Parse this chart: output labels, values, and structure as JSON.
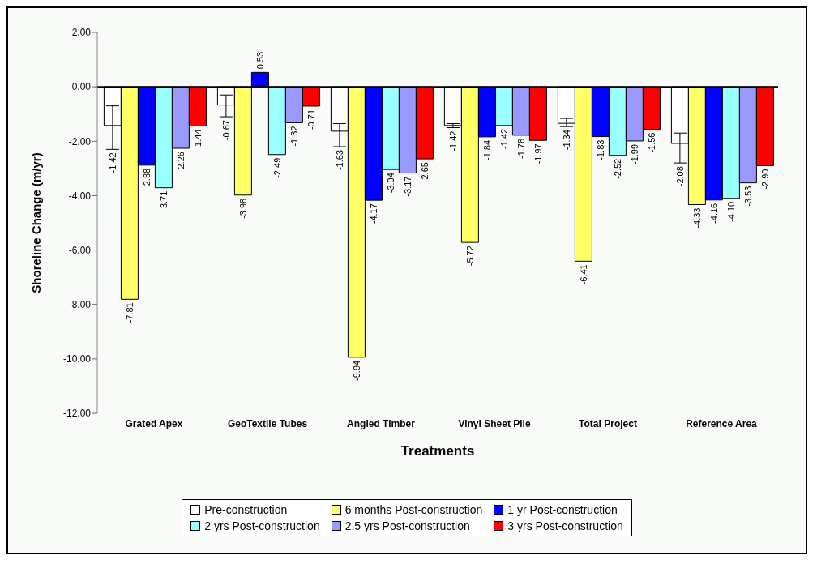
{
  "chart_data": {
    "type": "bar",
    "xlabel": "Treatments",
    "ylabel": "Shoreline Change (m/yr)",
    "categories": [
      "Grated Apex",
      "GeoTextile Tubes",
      "Angled Timber",
      "Vinyl Sheet Pile",
      "Total Project",
      "Reference Area"
    ],
    "series": [
      {
        "name": "Pre-construction",
        "color": "#ffffff",
        "values": [
          -1.42,
          -0.67,
          -1.63,
          -1.42,
          -1.34,
          -2.08
        ],
        "value_labels": [
          "-1.42",
          "-0.67",
          "-1.63",
          "-1.42",
          "-1.34",
          "-2.08"
        ],
        "errors": [
          [
            -2.3,
            -0.7
          ],
          [
            -1.1,
            -0.3
          ],
          [
            -2.2,
            -1.35
          ],
          [
            -1.5,
            -1.35
          ],
          [
            -1.46,
            -1.16
          ],
          [
            -2.8,
            -1.7
          ]
        ]
      },
      {
        "name": "6 months Post-construction",
        "color": "#ffff66",
        "values": [
          -7.81,
          -3.98,
          -9.94,
          -5.72,
          -6.41,
          -4.33
        ],
        "value_labels": [
          "-7.81",
          "-3.98",
          "-9.94",
          "-5.72",
          "-6.41",
          "-4.33"
        ]
      },
      {
        "name": "1 yr Post-construction",
        "color": "#0000ff",
        "values": [
          -2.88,
          0.53,
          -4.17,
          -1.84,
          -1.83,
          -4.16
        ],
        "value_labels": [
          "-2.88",
          "0.53",
          "-4.17",
          "-1.84",
          "-1.83",
          "-4.16"
        ]
      },
      {
        "name": "2 yrs Post-construction",
        "color": "#99ffff",
        "values": [
          -3.71,
          -2.49,
          -3.04,
          -1.42,
          -2.52,
          -4.1
        ],
        "value_labels": [
          "-3.71",
          "-2.49",
          "-3.04",
          "-1.42",
          "-2.52",
          "-4.10"
        ]
      },
      {
        "name": "2.5 yrs Post-construction",
        "color": "#9999ff",
        "values": [
          -2.26,
          -1.32,
          -3.17,
          -1.78,
          -1.99,
          -3.53
        ],
        "value_labels": [
          "-2.26",
          "-1.32",
          "-3.17",
          "-1.78",
          "-1.99",
          "-3.53"
        ]
      },
      {
        "name": "3 yrs Post-construction",
        "color": "#ff0000",
        "values": [
          -1.44,
          -0.71,
          -2.65,
          -1.97,
          -1.56,
          -2.9
        ],
        "value_labels": [
          "-1.44",
          "-0.71",
          "-2.65",
          "-1.97",
          "-1.56",
          "-2.90"
        ]
      }
    ],
    "ylim": [
      -12,
      2
    ],
    "yticks": [
      {
        "value": -12,
        "label": "-12.00"
      },
      {
        "value": -10,
        "label": "-10.00"
      },
      {
        "value": -8,
        "label": "-8.00"
      },
      {
        "value": -6,
        "label": "-6.00"
      },
      {
        "value": -4,
        "label": "-4.00"
      },
      {
        "value": -2,
        "label": "-2.00"
      },
      {
        "value": 0,
        "label": "0.00"
      },
      {
        "value": 2,
        "label": "2.00"
      }
    ],
    "ref_lines": [
      {
        "axis": "y",
        "value": 0,
        "color": "#000000"
      }
    ],
    "legend": "bottom"
  }
}
